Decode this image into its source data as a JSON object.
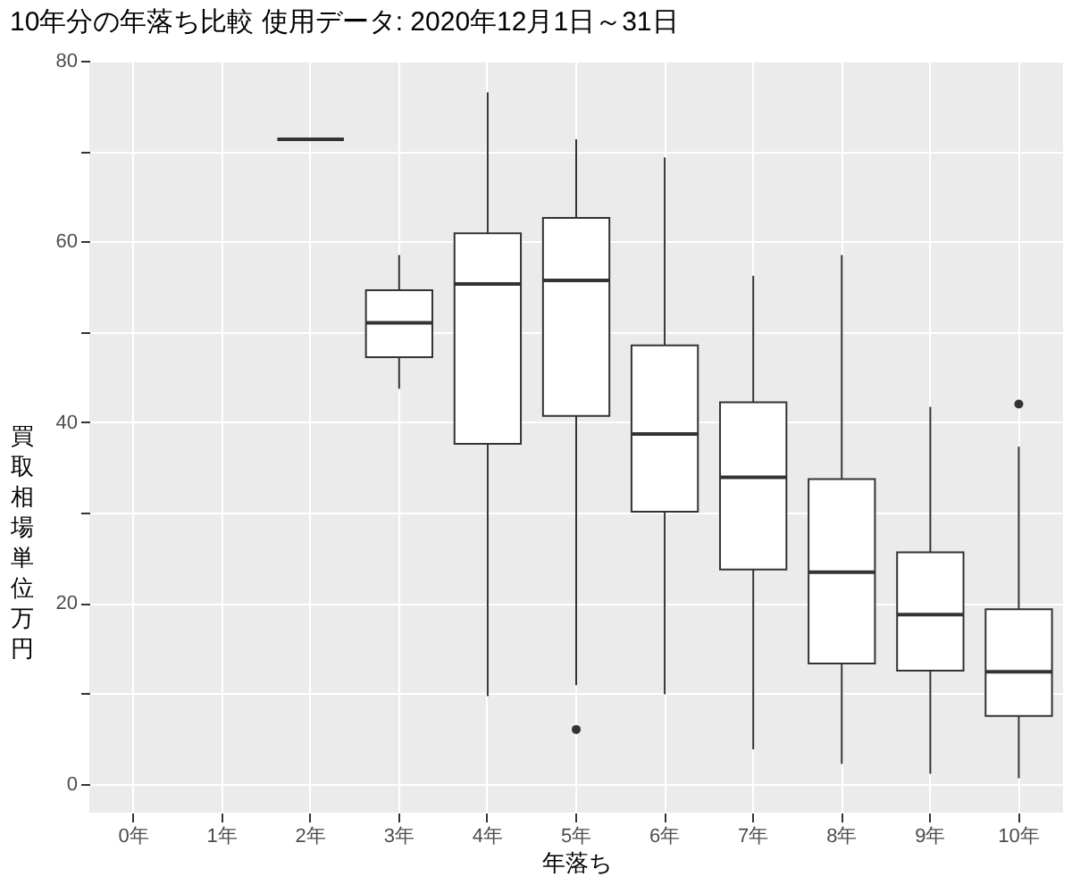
{
  "chart_data": {
    "type": "box",
    "title": "10年分の年落ち比較 使用データ: 2020年12月1日～31日",
    "xlabel": "年落ち",
    "ylabel": "買取相場単位万円",
    "categories": [
      "0年",
      "1年",
      "2年",
      "3年",
      "4年",
      "5年",
      "6年",
      "7年",
      "8年",
      "9年",
      "10年"
    ],
    "boxes": [
      null,
      null,
      {
        "low": 71.3,
        "q1": 71.3,
        "median": 71.3,
        "q3": 71.3,
        "high": 71.3
      },
      {
        "low": 43.7,
        "q1": 47.2,
        "median": 51.0,
        "q3": 54.6,
        "high": 58.5
      },
      {
        "low": 9.7,
        "q1": 37.6,
        "median": 55.3,
        "q3": 60.9,
        "high": 76.5
      },
      {
        "low": 10.9,
        "q1": 40.7,
        "median": 55.7,
        "q3": 62.6,
        "high": 71.3,
        "outliers": [
          6.0
        ]
      },
      {
        "low": 9.9,
        "q1": 30.1,
        "median": 38.7,
        "q3": 48.5,
        "high": 69.3
      },
      {
        "low": 3.8,
        "q1": 23.7,
        "median": 33.9,
        "q3": 42.2,
        "high": 56.2
      },
      {
        "low": 2.2,
        "q1": 13.3,
        "median": 23.4,
        "q3": 33.7,
        "high": 58.5
      },
      {
        "low": 1.1,
        "q1": 12.5,
        "median": 18.7,
        "q3": 25.6,
        "high": 41.7
      },
      {
        "low": 0.6,
        "q1": 7.5,
        "median": 12.4,
        "q3": 19.3,
        "high": 37.3,
        "outliers": [
          42.0
        ]
      }
    ],
    "ylim": [
      -3.2,
      80
    ],
    "yticks": [
      0,
      {
        "value": 10,
        "label": null
      },
      20,
      {
        "value": 30,
        "label": null
      },
      40,
      {
        "value": 50,
        "label": null
      },
      60,
      {
        "value": 70,
        "label": null
      },
      80
    ],
    "grid": true
  }
}
